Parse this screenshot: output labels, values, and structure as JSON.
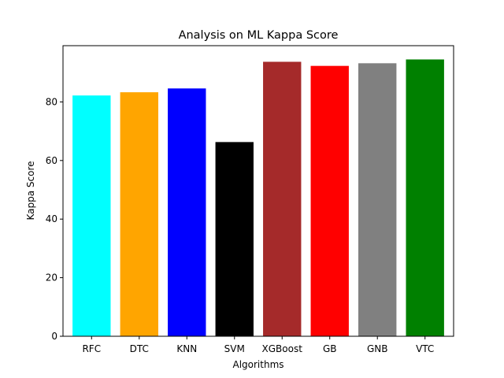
{
  "chart_data": {
    "type": "bar",
    "title": "Analysis on ML Kappa Score",
    "xlabel": "Algorithms",
    "ylabel": "Kappa Score",
    "categories": [
      "RFC",
      "DTC",
      "KNN",
      "SVM",
      "XGBoost",
      "GB",
      "GNB",
      "VTC"
    ],
    "values": [
      82.2,
      83.3,
      84.6,
      66.3,
      93.7,
      92.3,
      93.2,
      94.5
    ],
    "colors": [
      "#00ffff",
      "#ffa500",
      "#0000ff",
      "#000000",
      "#a52a2a",
      "#ff0000",
      "#808080",
      "#008000"
    ],
    "ylim": [
      0,
      99.2
    ],
    "yticks": [
      0,
      20,
      40,
      60,
      80
    ],
    "grid": false,
    "legend": "none"
  }
}
